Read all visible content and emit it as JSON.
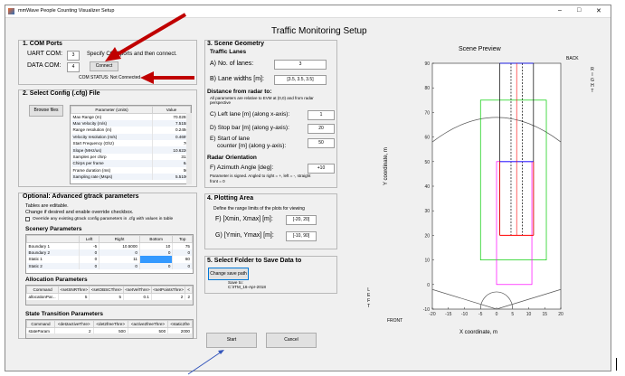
{
  "window": {
    "title": "mmWave People Counting Visualizer Setup",
    "minimize": "–",
    "maximize": "□",
    "close": "✕",
    "icon": "matlab-icon"
  },
  "heading": "Traffic Monitoring Setup",
  "com": {
    "title": "1. COM Ports",
    "uart_label": "UART COM:",
    "uart_value": "3",
    "data_label": "DATA COM:",
    "data_value": "4",
    "hint": "Specify COM ports and then connect.",
    "connect": "Connect",
    "status": "COM STATUS: Not Connected"
  },
  "config": {
    "title": "2. Select Config (.cfg) File",
    "browse": "Browse files",
    "headers": [
      "Parameter (Units)",
      "Value"
    ],
    "rows": [
      [
        "Max Range (m)",
        "70.0292"
      ],
      [
        "Max Velocity (m/s)",
        "7.5158"
      ],
      [
        "Range resolution (m)",
        "0.2494"
      ],
      [
        "Velocity resolution (m/s)",
        "0.4697"
      ],
      [
        "Start Frequency (Ghz)",
        "76"
      ],
      [
        "Slope (MHz/us)",
        "10.6220"
      ],
      [
        "Samples per chirp",
        "312"
      ],
      [
        "Chirps per frame",
        "64"
      ],
      [
        "Frame duration (ms)",
        "50"
      ],
      [
        "Sampling rate (Msps)",
        "5.5100"
      ]
    ]
  },
  "gtrack": {
    "title": "Optional: Advanced gtrack parameters",
    "note1": "Tables are editable.",
    "note2": "Change if desired and enable override checkbox.",
    "override": "Override any existing gtrack config parameters in .cfg with values in table",
    "scenery_title": "Scenery Parameters",
    "scenery_headers": [
      "",
      "Left",
      "Right",
      "Bottom",
      "Top"
    ],
    "scenery_rows": [
      [
        "Boundary 1",
        "-5",
        "10.5000",
        "10",
        "75"
      ],
      [
        "Boundary 2",
        "0",
        "0",
        "0",
        "0"
      ],
      [
        "Static 1",
        "0",
        "11",
        "",
        "60"
      ],
      [
        "Static 2",
        "0",
        "0",
        "0",
        "0"
      ]
    ],
    "alloc_title": "Allocation Parameters",
    "alloc_headers": [
      "Command",
      "<setSNRThre>",
      "<setOBSCThre>",
      "<setVelThre>",
      "<setPointsThre>",
      "<"
    ],
    "alloc_rows": [
      [
        "allocationPar...",
        "5",
        "5",
        "0.1",
        "2",
        "2"
      ]
    ],
    "state_title": "State Transition Parameters",
    "state_headers": [
      "Command",
      "<det2activeThre>",
      "<det2freeThre>",
      "<active2freeThre>",
      "<static2fre"
    ],
    "state_rows": [
      [
        "stateParam",
        "2",
        "500",
        "500",
        "2000"
      ]
    ]
  },
  "geometry": {
    "title": "3. Scene Geometry",
    "lanes_title": "Traffic Lanes",
    "a_label": "A) No. of lanes:",
    "a_value": "3",
    "b_label": "B) Lane widths [m]:",
    "b_value": "[3.5, 3.5, 3.5]",
    "dist_title": "Distance from radar to:",
    "dist_note1": "All parameters are relative to EVM at (0,0) and from radar",
    "dist_note2": "perspective",
    "c_label": "C) Left lane [m] (along x-axis):",
    "c_value": "1",
    "d_label": "D) Stop bar [m] (along y-axis):",
    "d_value": "20",
    "e_label1": "E) Start of lane",
    "e_label2": "counter [m] (along y-axis):",
    "e_value": "50",
    "orient_title": "Radar Orientation",
    "f_label": "F) Azimuth Angle [deg]:",
    "f_value": "+10",
    "f_note1": "Parameter is signed. Angled to right = +, left = -, straight",
    "f_note2": "front = 0"
  },
  "plotting": {
    "title": "4. Plotting Area",
    "hint": "Define the range limits of the plots for viewing",
    "f_label": "F) [Xmin, Xmax] [m]:",
    "f_value": "[-20, 20]",
    "g_label": "G) [Ymin, Ymax] [m]:",
    "g_value": "[-10, 90]"
  },
  "folder": {
    "title": "5. Select Folder to Save Data to",
    "button": "Change save path",
    "save_label": "Save to:",
    "save_path": "C:\\ITM_16-Apr-2018"
  },
  "actions": {
    "start": "Start",
    "cancel": "Cancel"
  },
  "preview": {
    "title": "Scene Preview",
    "back": "BACK",
    "front": "FRONT",
    "left": "L\nE\nF\nT",
    "right": "R\nI\nG\nH\nT",
    "xlabel": "X coordinate, m",
    "ylabel": "Y coordinate, m",
    "xticks": [
      "-20",
      "-15",
      "-10",
      "-5",
      "0",
      "5",
      "10",
      "15",
      "20"
    ],
    "yticks": [
      "90",
      "80",
      "70",
      "60",
      "50",
      "40",
      "30",
      "20",
      "10",
      "0",
      "-10"
    ],
    "colors": {
      "lanes": "#000000",
      "green": "#00cc00",
      "magenta": "#ff00ff",
      "blue": "#0000ff",
      "red": "#ff0000",
      "gray": "#555555"
    }
  }
}
